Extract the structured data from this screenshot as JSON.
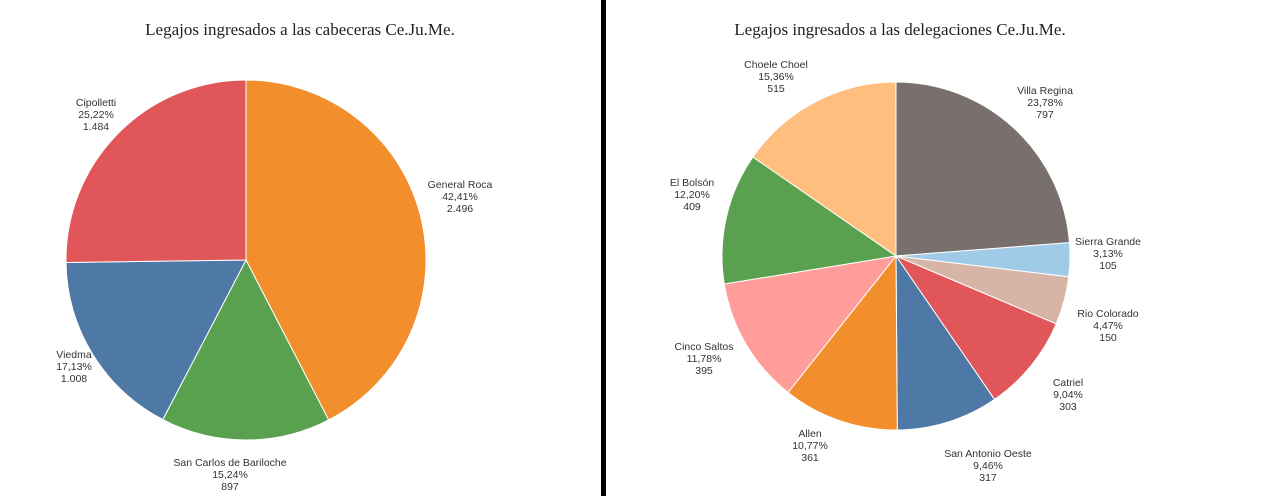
{
  "chart_data": [
    {
      "type": "pie",
      "title": "Legajos ingresados a las cabeceras Ce.Ju.Me.",
      "slices": [
        {
          "label": "General Roca",
          "percent": "42,41%",
          "value": "2.496",
          "pct": 42.41,
          "color": "#f28e2b"
        },
        {
          "label": "San Carlos de Bariloche",
          "percent": "15,24%",
          "value": "897",
          "pct": 15.24,
          "color": "#59a14f"
        },
        {
          "label": "Viedma",
          "percent": "17,13%",
          "value": "1.008",
          "pct": 17.13,
          "color": "#4e79a7"
        },
        {
          "label": "Cipolletti",
          "percent": "25,22%",
          "value": "1.484",
          "pct": 25.22,
          "color": "#e15759"
        }
      ]
    },
    {
      "type": "pie",
      "title": "Legajos ingresados a las delegaciones Ce.Ju.Me.",
      "slices": [
        {
          "label": "Villa Regina",
          "percent": "23,78%",
          "value": "797",
          "pct": 23.78,
          "color": "#79706e"
        },
        {
          "label": "Sierra Grande",
          "percent": "3,13%",
          "value": "105",
          "pct": 3.13,
          "color": "#a0cbe8"
        },
        {
          "label": "Rio Colorado",
          "percent": "4,47%",
          "value": "150",
          "pct": 4.47,
          "color": "#d7b5a6"
        },
        {
          "label": "Catriel",
          "percent": "9,04%",
          "value": "303",
          "pct": 9.04,
          "color": "#e15759"
        },
        {
          "label": "San Antonio Oeste",
          "percent": "9,46%",
          "value": "317",
          "pct": 9.46,
          "color": "#4e79a7"
        },
        {
          "label": "Allen",
          "percent": "10,77%",
          "value": "361",
          "pct": 10.77,
          "color": "#f28e2b"
        },
        {
          "label": "Cinco Saltos",
          "percent": "11,78%",
          "value": "395",
          "pct": 11.78,
          "color": "#ff9d9a"
        },
        {
          "label": "El Bolsón",
          "percent": "12,20%",
          "value": "409",
          "pct": 12.2,
          "color": "#59a14f"
        },
        {
          "label": "Choele Choel",
          "percent": "15,36%",
          "value": "515",
          "pct": 15.36,
          "color": "#ffbe7d"
        }
      ]
    }
  ]
}
